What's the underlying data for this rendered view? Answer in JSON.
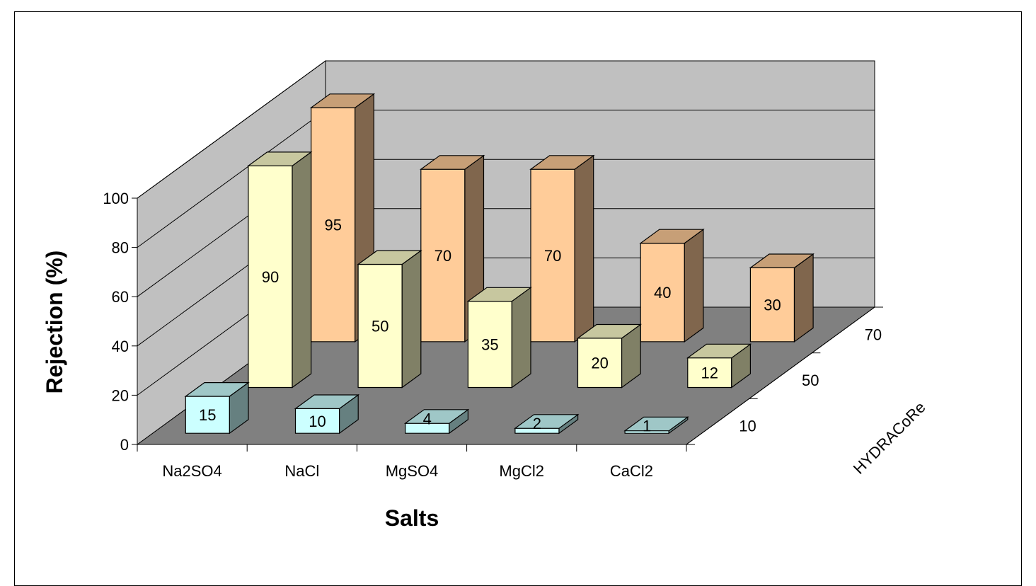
{
  "chart_data": {
    "type": "bar",
    "variant": "3d-grouped-depth",
    "xlabel": "Salts",
    "ylabel": "Rejection (%)",
    "zlabel": "HYDRACoRe",
    "categories": [
      "Na2SO4",
      "NaCl",
      "MgSO4",
      "MgCl2",
      "CaCl2"
    ],
    "ylim": [
      0,
      100
    ],
    "yticks": [
      0,
      20,
      40,
      60,
      80,
      100
    ],
    "grid": true,
    "series": [
      {
        "name": "10",
        "values": [
          15,
          10,
          4,
          2,
          1
        ],
        "color": "#ccffff"
      },
      {
        "name": "50",
        "values": [
          90,
          50,
          35,
          20,
          12
        ],
        "color": "#ffffcc"
      },
      {
        "name": "70",
        "values": [
          95,
          70,
          70,
          40,
          30
        ],
        "color": "#ffcc99"
      }
    ],
    "colors": {
      "wall": "#c0c0c0",
      "floor": "#808080"
    }
  }
}
